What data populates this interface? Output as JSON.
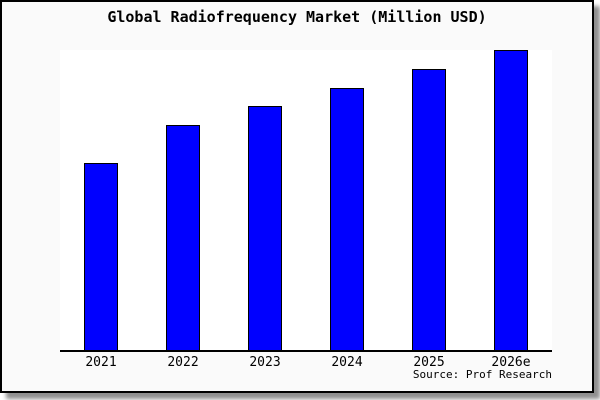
{
  "window": {
    "page_background": "#ffffff",
    "card_background": "#fafafa",
    "card_border_color": "#000000",
    "shadow_color": "#8f8f8f"
  },
  "chart": {
    "plot_background": "#ffffff",
    "axis_color": "#000000",
    "bar_fill_color": "#0000ff",
    "bar_border_color": "#000000",
    "text_color": "#000000"
  },
  "chart_data": {
    "type": "bar",
    "title": "Global Radiofrequency Market (Million USD)",
    "source": "Source: Prof Research",
    "categories": [
      "2021",
      "2022",
      "2023",
      "2024",
      "2025",
      "2026e"
    ],
    "values": [
      62.5,
      75.0,
      81.25,
      87.5,
      93.75,
      100.0
    ],
    "values_unit": "percent of plot height; y-axis unlabeled, bar proportions approx 10:12:13:14:15:16",
    "xlabel": "",
    "ylabel": "",
    "ylim": [
      0,
      100
    ],
    "grid": false,
    "legend": false
  }
}
